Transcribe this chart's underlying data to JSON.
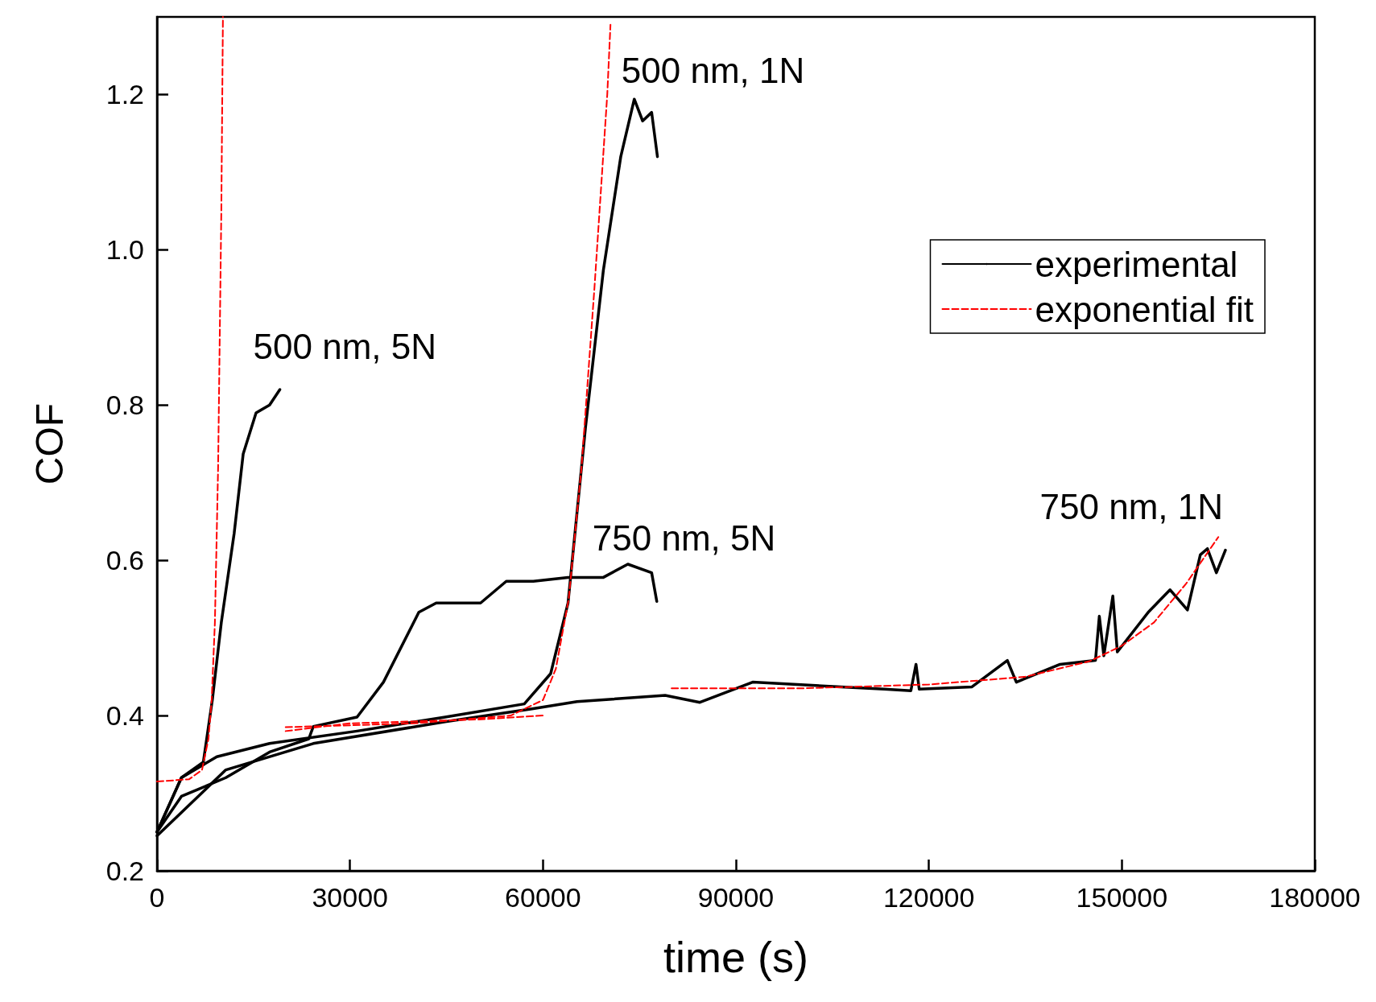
{
  "chart_data": {
    "type": "line",
    "xlabel": "time (s)",
    "ylabel": "COF",
    "xlim": [
      0,
      180000
    ],
    "xticks": [
      0,
      30000,
      60000,
      90000,
      120000,
      150000,
      180000
    ],
    "ylim": [
      0.2,
      1.3
    ],
    "yticks": [
      0.2,
      0.4,
      0.6,
      0.8,
      {
        "value": 1,
        "label": "1.0"
      },
      1.2
    ],
    "grid": false,
    "legend": "right",
    "marker": "none",
    "series": [
      {
        "name": "experimental",
        "color": "#000000",
        "line_style": "solid",
        "x": [
          0,
          3800,
          7200,
          8600,
          10000,
          12000,
          13400,
          15400,
          17500,
          19100
        ],
        "values": [
          0.25,
          0.32,
          0.34,
          0.42,
          0.52,
          0.635,
          0.737,
          0.79,
          0.8,
          0.82
        ]
      },
      {
        "color": "#000000",
        "line_style": "solid",
        "x": [
          0,
          3800,
          9300,
          17500,
          31100,
          44800,
          57100,
          61200,
          63900,
          66600,
          69400,
          72100,
          74200,
          75500,
          76900,
          77800
        ],
        "values": [
          0.25,
          0.32,
          0.347,
          0.364,
          0.38,
          0.398,
          0.415,
          0.454,
          0.545,
          0.77,
          0.974,
          1.12,
          1.194,
          1.166,
          1.177,
          1.12
        ]
      },
      {
        "color": "#000000",
        "line_style": "solid",
        "x": [
          0,
          3800,
          10700,
          17500,
          23600,
          24300,
          31100,
          35200,
          40700,
          43400,
          50300,
          54300,
          58500,
          63900,
          69400,
          73200,
          76900,
          77700
        ],
        "values": [
          0.25,
          0.296,
          0.32,
          0.353,
          0.37,
          0.386,
          0.398,
          0.443,
          0.533,
          0.545,
          0.545,
          0.573,
          0.573,
          0.578,
          0.578,
          0.595,
          0.584,
          0.547
        ]
      },
      {
        "color": "#000000",
        "line_style": "solid",
        "x": [
          0,
          10700,
          24300,
          44800,
          58500,
          65300,
          79000,
          84400,
          92600,
          106300,
          113100,
          117200,
          118000,
          118500,
          126700,
          132200,
          133600,
          140400,
          145900,
          146500,
          147200,
          148600,
          149300,
          154100,
          157500,
          160200,
          162200,
          163300,
          164700,
          166100
        ],
        "values": [
          0.245,
          0.33,
          0.364,
          0.392,
          0.409,
          0.418,
          0.426,
          0.417,
          0.443,
          0.437,
          0.434,
          0.432,
          0.466,
          0.434,
          0.437,
          0.471,
          0.443,
          0.466,
          0.471,
          0.528,
          0.477,
          0.554,
          0.482,
          0.533,
          0.562,
          0.536,
          0.607,
          0.615,
          0.584,
          0.613
        ]
      },
      {
        "name": "exponential fit",
        "color": "#ff0000",
        "line_style": "dashed",
        "x": [
          0,
          5000,
          7000,
          8000,
          8500,
          9000,
          9500,
          10000,
          10250
        ],
        "values": [
          0.315,
          0.318,
          0.33,
          0.37,
          0.42,
          0.52,
          0.72,
          1.05,
          1.3
        ]
      },
      {
        "color": "#ff0000",
        "line_style": "dashed",
        "x": [
          20000,
          40000,
          55000,
          60000,
          62000,
          64000,
          66000,
          68000,
          70000,
          70500
        ],
        "values": [
          0.385,
          0.39,
          0.4,
          0.42,
          0.46,
          0.55,
          0.72,
          0.95,
          1.2,
          1.29
        ]
      },
      {
        "color": "#ff0000",
        "line_style": "dashed",
        "x": [
          20000,
          30000,
          50000,
          60000
        ],
        "values": [
          0.38,
          0.39,
          0.395,
          0.4
        ]
      },
      {
        "color": "#ff0000",
        "line_style": "dashed",
        "x": [
          80000,
          100000,
          120000,
          135000,
          145000,
          150000,
          155000,
          160000,
          165000
        ],
        "values": [
          0.435,
          0.435,
          0.44,
          0.45,
          0.47,
          0.49,
          0.52,
          0.57,
          0.63
        ]
      }
    ],
    "annotations": [
      "500 nm, 5N",
      "500 nm, 1N",
      "750 nm, 5N",
      "750 nm, 1N"
    ]
  }
}
